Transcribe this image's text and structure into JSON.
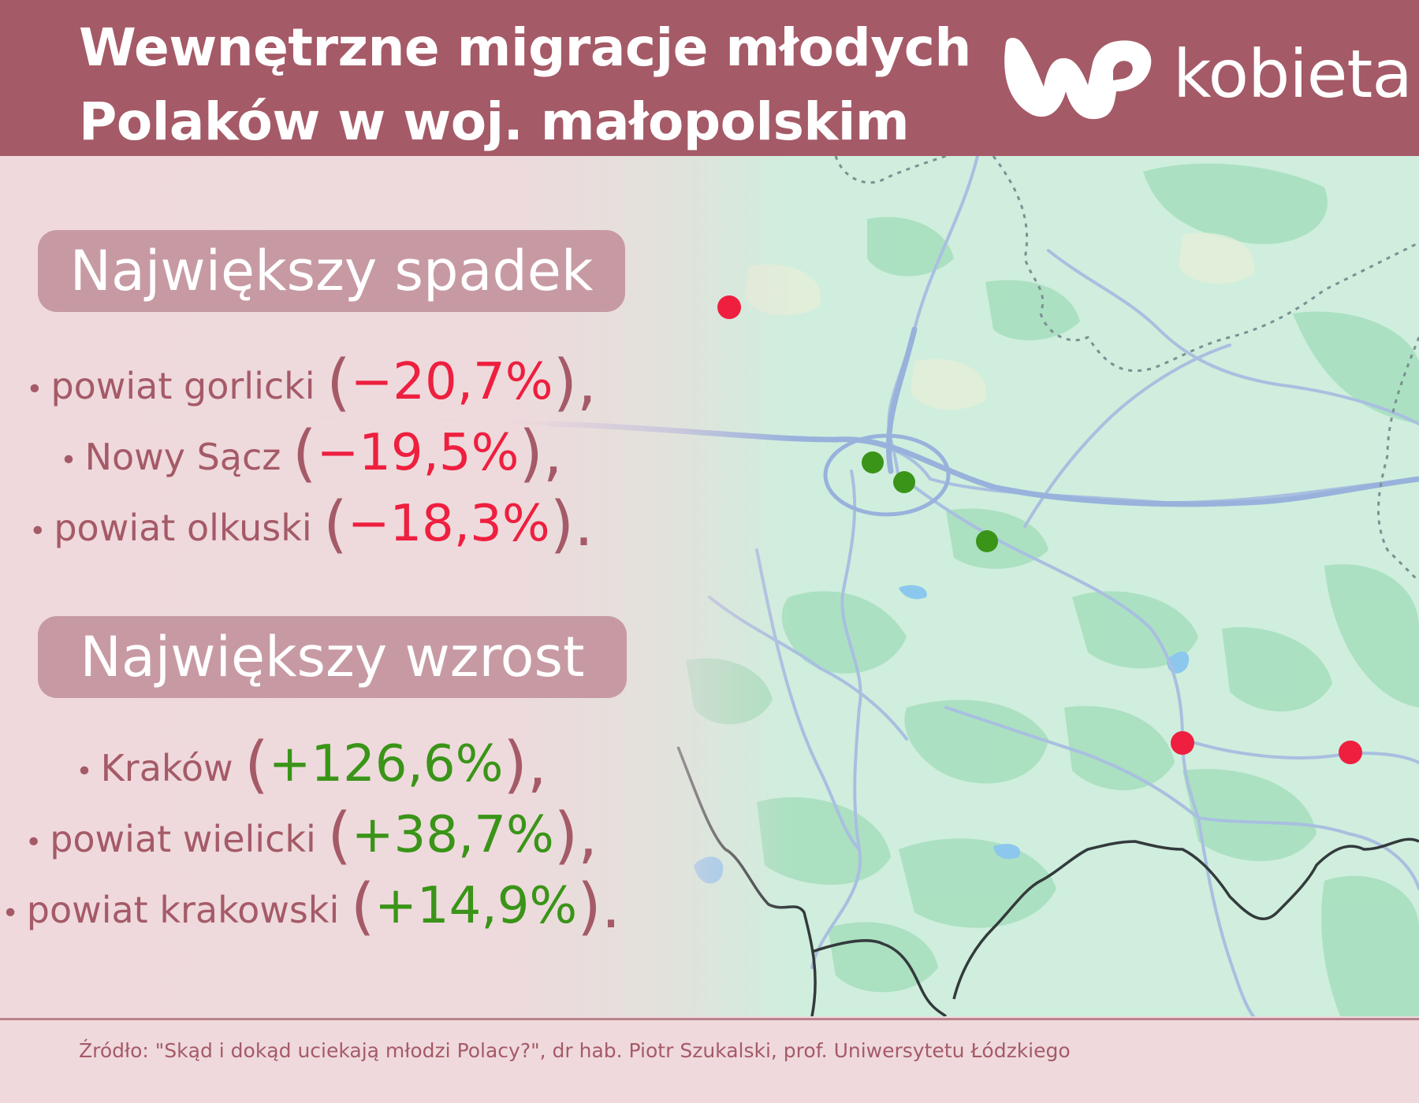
{
  "header": {
    "title_line1": "Wewnętrzne migracje młodych",
    "title_line2": "Polaków w woj. małopolskim",
    "logo_text": "kobieta",
    "background_color": "#a55a67"
  },
  "decrease": {
    "heading": "Największy spadek",
    "items": [
      {
        "name": "powiat gorlicki",
        "value": "−20,7%",
        "punct": ","
      },
      {
        "name": "Nowy Sącz",
        "value": "−19,5%",
        "punct": ","
      },
      {
        "name": "powiat olkuski",
        "value": "−18,3%",
        "punct": "."
      }
    ],
    "color": "#ee1f3f"
  },
  "increase": {
    "heading": "Największy wzrost",
    "items": [
      {
        "name": "Kraków",
        "value": "+126,6%",
        "punct": ","
      },
      {
        "name": "powiat wielicki",
        "value": "+38,7%",
        "punct": ","
      },
      {
        "name": "powiat krakowski",
        "value": "+14,9%",
        "punct": "."
      }
    ],
    "color": "#3a9418"
  },
  "map": {
    "icon": "map-background",
    "markers": [
      {
        "type": "decrease",
        "color": "#ee1f3f"
      },
      {
        "type": "decrease",
        "color": "#ee1f3f"
      },
      {
        "type": "decrease",
        "color": "#ee1f3f"
      },
      {
        "type": "increase",
        "color": "#3a9418"
      },
      {
        "type": "increase",
        "color": "#3a9418"
      },
      {
        "type": "increase",
        "color": "#3a9418"
      }
    ]
  },
  "source": "Źródło: \"Skąd i dokąd uciekają młodzi Polacy?\", dr hab. Piotr Szukalski, prof. Uniwersytetu Łódzkiego"
}
